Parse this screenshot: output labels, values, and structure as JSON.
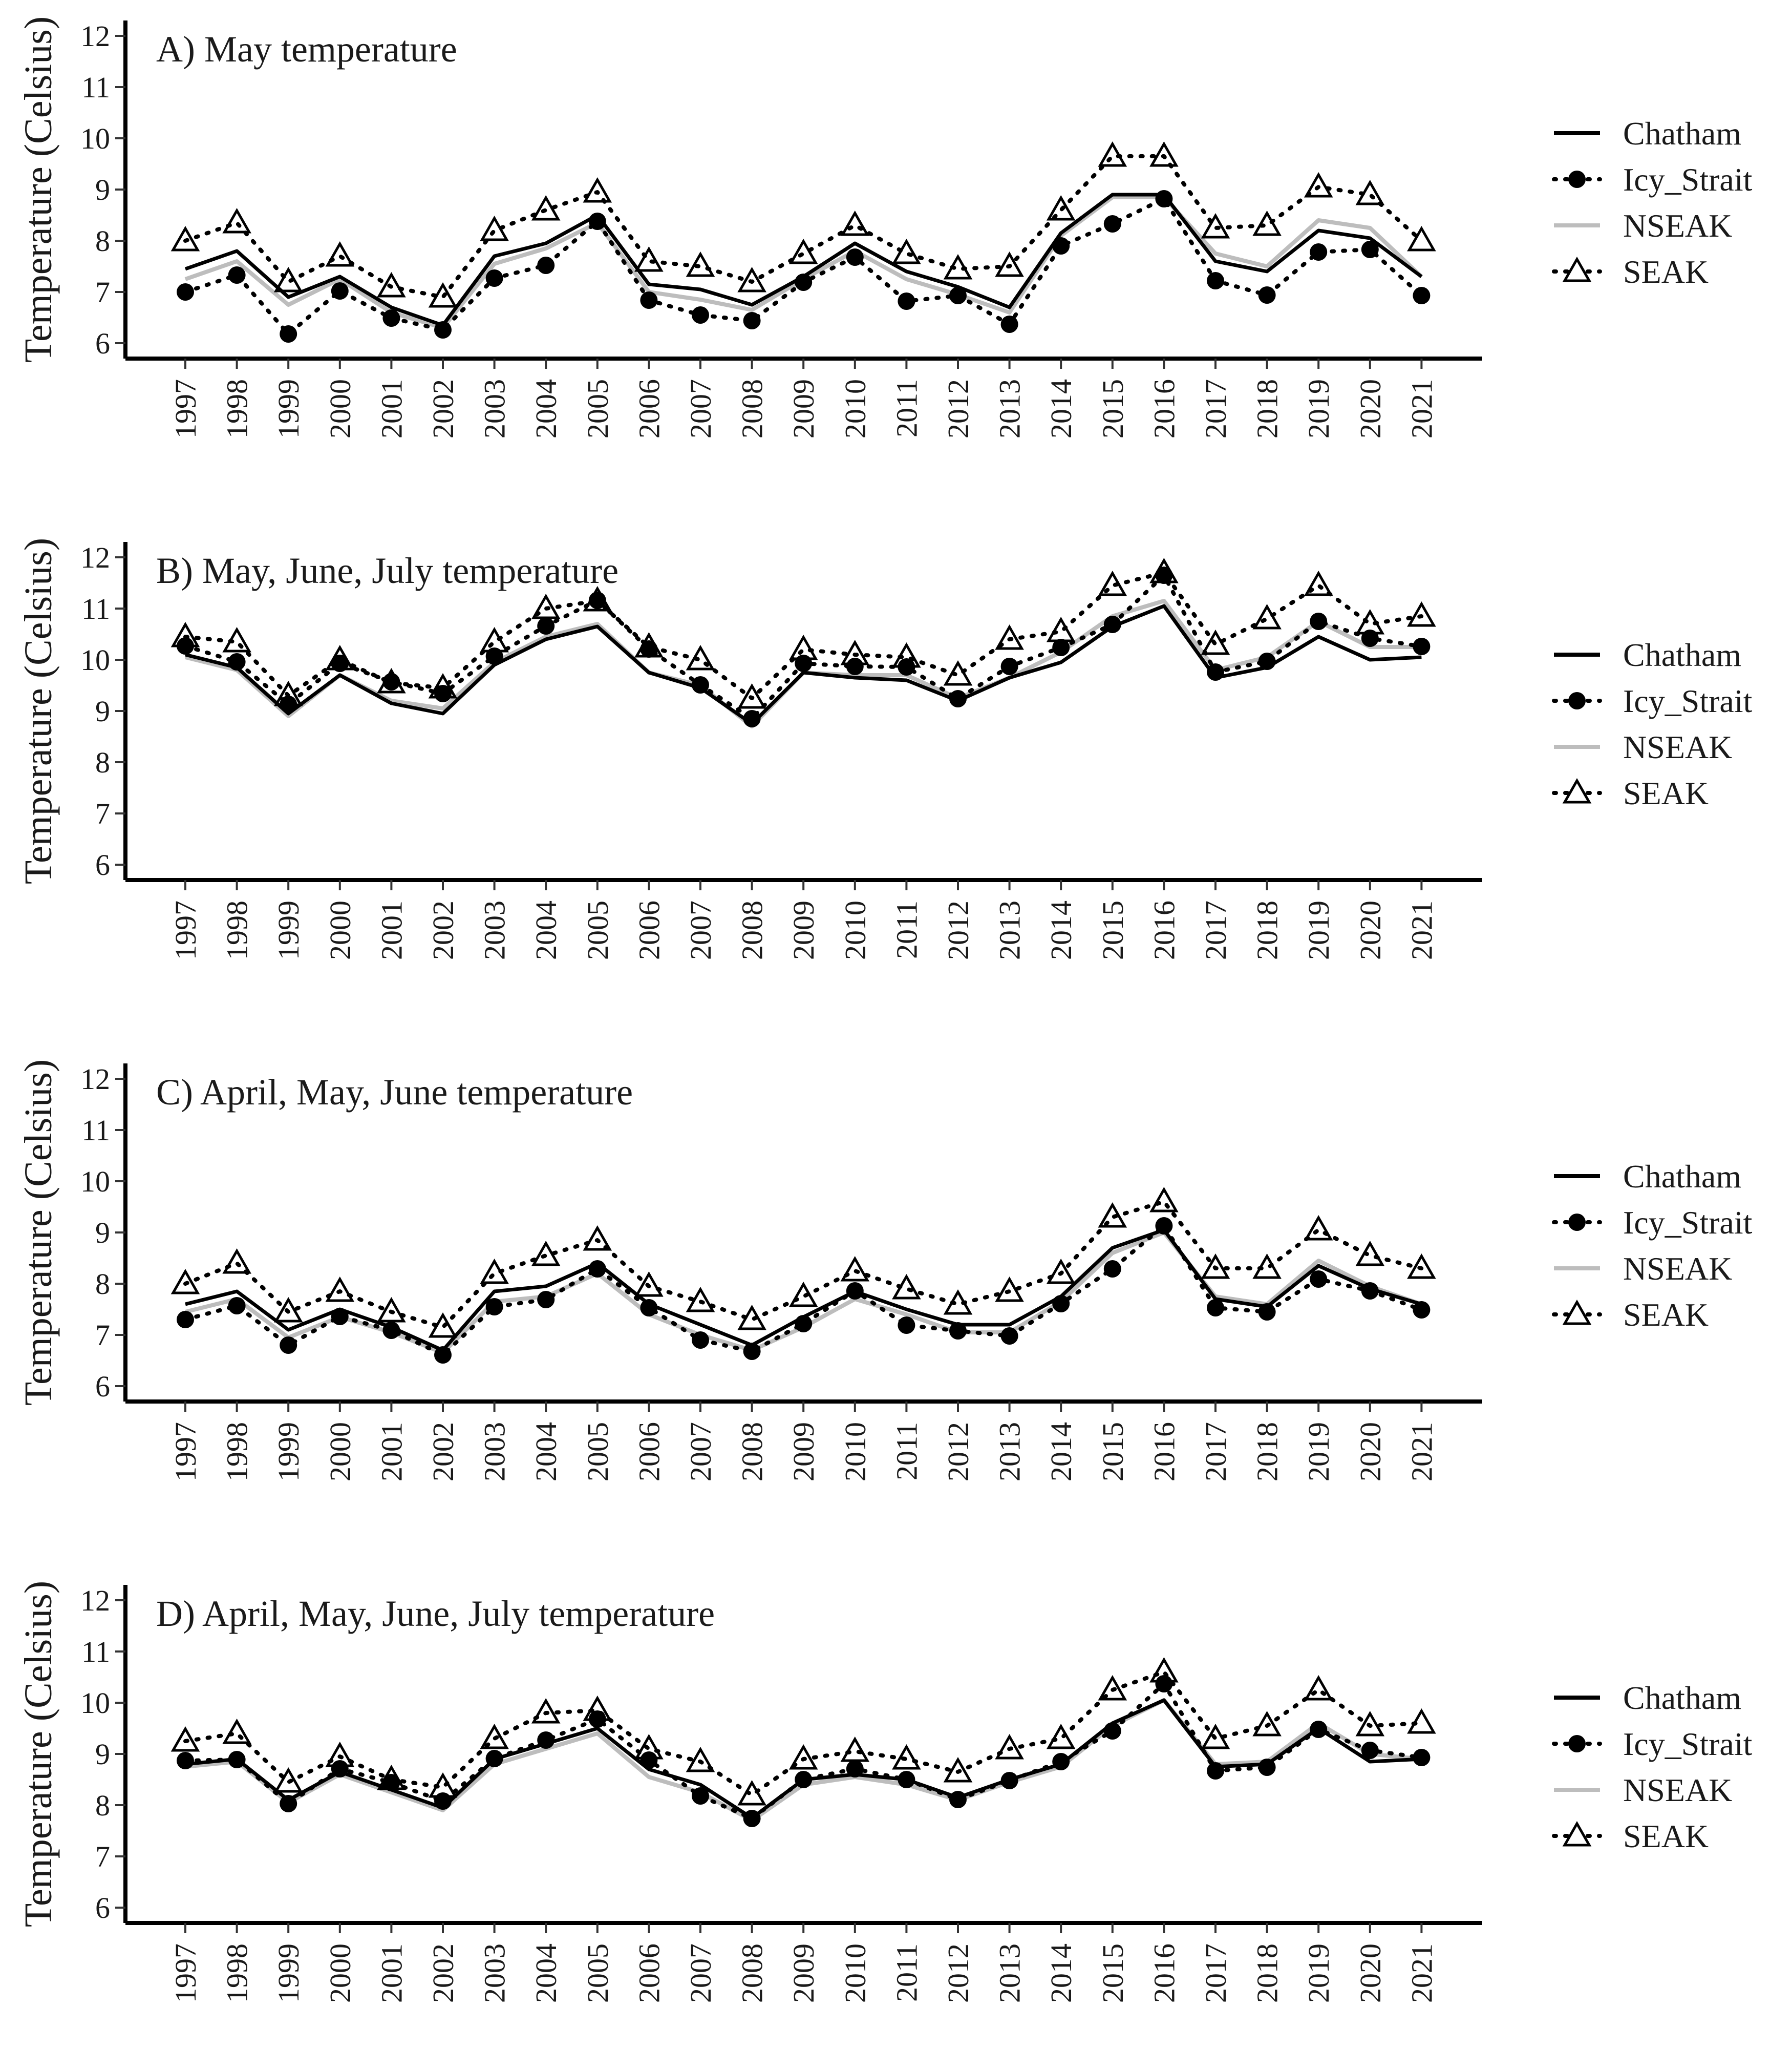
{
  "figure": {
    "ylabel": "Temperature (Celsius)",
    "legend": {
      "placement": "right",
      "entries": [
        {
          "name": "Chatham",
          "style": "solid-line",
          "color": "#000000"
        },
        {
          "name": "Icy_Strait",
          "style": "dotted-line-filled-circle",
          "color": "#000000"
        },
        {
          "name": "NSEAK",
          "style": "solid-line",
          "color": "#bdbdbd"
        },
        {
          "name": "SEAK",
          "style": "dotted-line-open-triangle",
          "color": "#000000"
        }
      ]
    }
  },
  "chart_data": [
    {
      "type": "line",
      "title": "A) May temperature",
      "ylabel": "Temperature (Celsius)",
      "xlabel": "",
      "ylim": [
        5.7,
        12.3
      ],
      "yticks": [
        6,
        7,
        8,
        9,
        10,
        11,
        12
      ],
      "x": [
        "1997",
        "1998",
        "1999",
        "2000",
        "2001",
        "2002",
        "2003",
        "2004",
        "2005",
        "2006",
        "2007",
        "2008",
        "2009",
        "2010",
        "2011",
        "2012",
        "2013",
        "2014",
        "2015",
        "2016",
        "2017",
        "2018",
        "2019",
        "2020",
        "2021"
      ],
      "grid": false,
      "series": [
        {
          "name": "Chatham",
          "values": [
            7.45,
            7.8,
            6.9,
            7.3,
            6.7,
            6.35,
            7.7,
            7.95,
            8.5,
            7.15,
            7.05,
            6.75,
            7.3,
            7.95,
            7.4,
            7.1,
            6.7,
            8.15,
            8.9,
            8.9,
            7.6,
            7.4,
            8.2,
            8.05,
            7.3
          ]
        },
        {
          "name": "Icy_Strait",
          "values": [
            7.0,
            7.33,
            6.18,
            7.02,
            6.49,
            6.26,
            7.27,
            7.52,
            8.38,
            6.84,
            6.55,
            6.44,
            7.19,
            7.68,
            6.82,
            6.93,
            6.37,
            7.9,
            8.33,
            8.82,
            7.22,
            6.94,
            7.78,
            7.83,
            6.93
          ]
        },
        {
          "name": "NSEAK",
          "values": [
            7.25,
            7.6,
            6.75,
            7.25,
            6.6,
            6.3,
            7.55,
            7.85,
            8.35,
            7.0,
            6.85,
            6.65,
            7.25,
            7.8,
            7.25,
            6.95,
            6.6,
            8.1,
            8.85,
            8.85,
            7.75,
            7.5,
            8.4,
            8.25,
            7.3
          ]
        },
        {
          "name": "SEAK",
          "values": [
            8.0,
            8.35,
            7.2,
            7.7,
            7.1,
            6.9,
            8.2,
            8.6,
            8.95,
            7.6,
            7.5,
            7.2,
            7.75,
            8.3,
            7.75,
            7.45,
            7.5,
            8.6,
            9.65,
            9.65,
            8.25,
            8.3,
            9.05,
            8.9,
            8.0
          ]
        }
      ]
    },
    {
      "type": "line",
      "title": "B) May, June, July temperature",
      "ylabel": "Temperature (Celsius)",
      "xlabel": "",
      "ylim": [
        5.7,
        12.3
      ],
      "yticks": [
        6,
        7,
        8,
        9,
        10,
        11,
        12
      ],
      "x": [
        "1997",
        "1998",
        "1999",
        "2000",
        "2001",
        "2002",
        "2003",
        "2004",
        "2005",
        "2006",
        "2007",
        "2008",
        "2009",
        "2010",
        "2011",
        "2012",
        "2013",
        "2014",
        "2015",
        "2016",
        "2017",
        "2018",
        "2019",
        "2020",
        "2021"
      ],
      "grid": false,
      "series": [
        {
          "name": "Chatham",
          "values": [
            10.1,
            9.85,
            8.95,
            9.7,
            9.15,
            8.95,
            9.9,
            10.4,
            10.65,
            9.75,
            9.45,
            8.75,
            9.75,
            9.65,
            9.6,
            9.2,
            9.65,
            9.95,
            10.65,
            11.05,
            9.65,
            9.85,
            10.45,
            10.0,
            10.05
          ]
        },
        {
          "name": "Icy_Strait",
          "values": [
            10.27,
            9.96,
            9.13,
            9.93,
            9.57,
            9.34,
            10.07,
            10.66,
            11.16,
            10.21,
            9.51,
            8.85,
            9.93,
            9.87,
            9.86,
            9.24,
            9.87,
            10.24,
            10.69,
            11.65,
            9.76,
            9.97,
            10.75,
            10.42,
            10.26
          ]
        },
        {
          "name": "NSEAK",
          "values": [
            10.05,
            9.8,
            8.9,
            9.7,
            9.2,
            9.05,
            9.95,
            10.45,
            10.7,
            9.75,
            9.5,
            8.7,
            9.75,
            9.7,
            9.7,
            9.25,
            9.65,
            10.15,
            10.85,
            11.15,
            9.8,
            10.05,
            10.75,
            10.25,
            10.25
          ]
        },
        {
          "name": "SEAK",
          "values": [
            10.45,
            10.35,
            9.3,
            10.0,
            9.55,
            9.45,
            10.35,
            11.0,
            11.15,
            10.25,
            10.0,
            9.25,
            10.2,
            10.1,
            10.05,
            9.7,
            10.4,
            10.55,
            11.45,
            11.7,
            10.3,
            10.8,
            11.45,
            10.7,
            10.85
          ]
        }
      ]
    },
    {
      "type": "line",
      "title": "C) April, May, June temperature",
      "ylabel": "Temperature (Celsius)",
      "xlabel": "",
      "ylim": [
        5.7,
        12.3
      ],
      "yticks": [
        6,
        7,
        8,
        9,
        10,
        11,
        12
      ],
      "x": [
        "1997",
        "1998",
        "1999",
        "2000",
        "2001",
        "2002",
        "2003",
        "2004",
        "2005",
        "2006",
        "2007",
        "2008",
        "2009",
        "2010",
        "2011",
        "2012",
        "2013",
        "2014",
        "2015",
        "2016",
        "2017",
        "2018",
        "2019",
        "2020",
        "2021"
      ],
      "grid": false,
      "series": [
        {
          "name": "Chatham",
          "values": [
            7.6,
            7.85,
            7.1,
            7.5,
            7.15,
            6.7,
            7.85,
            7.95,
            8.4,
            7.6,
            7.2,
            6.8,
            7.35,
            7.85,
            7.5,
            7.2,
            7.2,
            7.75,
            8.7,
            9.05,
            7.7,
            7.55,
            8.35,
            7.9,
            7.6
          ]
        },
        {
          "name": "Icy_Strait",
          "values": [
            7.3,
            7.57,
            6.8,
            7.36,
            7.09,
            6.61,
            7.55,
            7.69,
            8.29,
            7.53,
            6.9,
            6.68,
            7.22,
            7.86,
            7.19,
            7.08,
            6.98,
            7.61,
            8.29,
            9.13,
            7.53,
            7.45,
            8.09,
            7.86,
            7.49
          ]
        },
        {
          "name": "NSEAK",
          "values": [
            7.45,
            7.7,
            6.95,
            7.35,
            7.05,
            6.65,
            7.65,
            7.75,
            8.2,
            7.4,
            7.0,
            6.7,
            7.15,
            7.7,
            7.4,
            7.05,
            7.05,
            7.65,
            8.6,
            9.0,
            7.75,
            7.6,
            8.45,
            7.95,
            7.6
          ]
        },
        {
          "name": "SEAK",
          "values": [
            8.0,
            8.4,
            7.45,
            7.85,
            7.45,
            7.15,
            8.2,
            8.55,
            8.85,
            7.95,
            7.65,
            7.3,
            7.75,
            8.25,
            7.9,
            7.6,
            7.85,
            8.2,
            9.3,
            9.6,
            8.3,
            8.3,
            9.05,
            8.55,
            8.3
          ]
        }
      ]
    },
    {
      "type": "line",
      "title": "D) April, May, June, July temperature",
      "ylabel": "Temperature (Celsius)",
      "xlabel": "",
      "ylim": [
        5.7,
        12.3
      ],
      "yticks": [
        6,
        7,
        8,
        9,
        10,
        11,
        12
      ],
      "x": [
        "1997",
        "1998",
        "1999",
        "2000",
        "2001",
        "2002",
        "2003",
        "2004",
        "2005",
        "2006",
        "2007",
        "2008",
        "2009",
        "2010",
        "2011",
        "2012",
        "2013",
        "2014",
        "2015",
        "2016",
        "2017",
        "2018",
        "2019",
        "2020",
        "2021"
      ],
      "grid": false,
      "series": [
        {
          "name": "Chatham",
          "values": [
            8.8,
            8.9,
            8.1,
            8.65,
            8.3,
            7.95,
            8.9,
            9.2,
            9.5,
            8.7,
            8.4,
            7.75,
            8.5,
            8.6,
            8.5,
            8.15,
            8.5,
            8.8,
            9.6,
            10.05,
            8.75,
            8.8,
            9.5,
            8.85,
            8.9
          ]
        },
        {
          "name": "Icy_Strait",
          "values": [
            8.87,
            8.89,
            8.03,
            8.71,
            8.44,
            8.08,
            8.91,
            9.27,
            9.68,
            8.88,
            8.18,
            7.74,
            8.5,
            8.71,
            8.5,
            8.11,
            8.48,
            8.85,
            9.45,
            10.37,
            8.67,
            8.74,
            9.48,
            9.07,
            8.93
          ]
        },
        {
          "name": "NSEAK",
          "values": [
            8.75,
            8.85,
            8.05,
            8.6,
            8.25,
            7.9,
            8.8,
            9.1,
            9.4,
            8.55,
            8.25,
            7.7,
            8.4,
            8.55,
            8.4,
            8.1,
            8.45,
            8.75,
            9.55,
            10.05,
            8.8,
            8.85,
            9.6,
            9.0,
            8.9
          ]
        },
        {
          "name": "SEAK",
          "values": [
            9.25,
            9.4,
            8.45,
            8.95,
            8.5,
            8.35,
            9.3,
            9.8,
            9.85,
            9.1,
            8.85,
            8.2,
            8.9,
            9.05,
            8.9,
            8.65,
            9.1,
            9.3,
            10.25,
            10.6,
            9.3,
            9.55,
            10.25,
            9.55,
            9.6
          ]
        }
      ]
    }
  ]
}
